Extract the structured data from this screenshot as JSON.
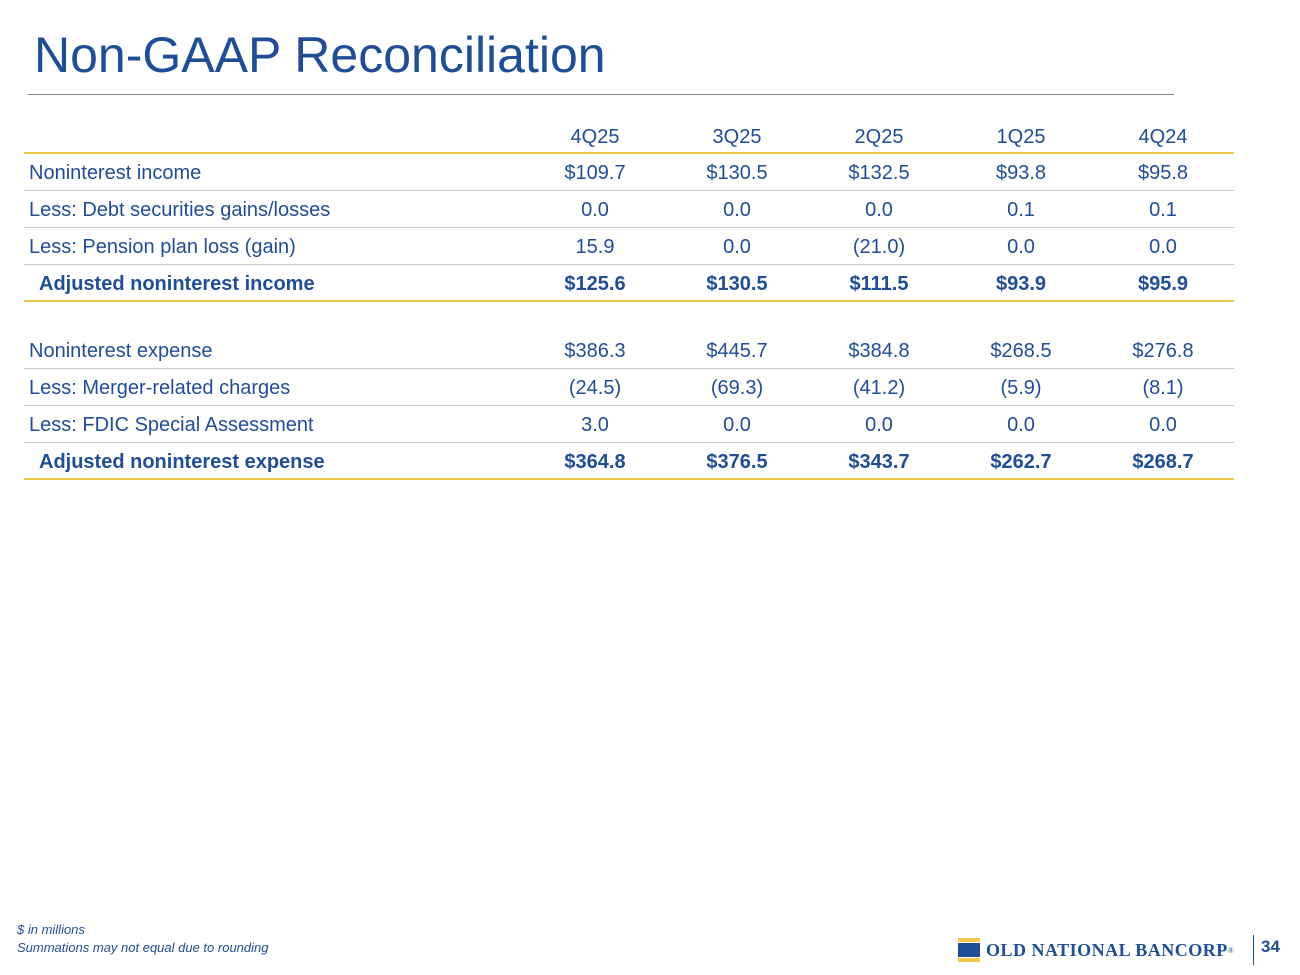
{
  "title": "Non-GAAP Reconciliation",
  "columns": [
    "4Q25",
    "3Q25",
    "2Q25",
    "1Q25",
    "4Q24"
  ],
  "income_section": [
    {
      "label": "Noninterest income",
      "values": [
        "$109.7",
        "$130.5",
        "$132.5",
        "$93.8",
        "$95.8"
      ]
    },
    {
      "label": "Less: Debt securities gains/losses",
      "values": [
        "0.0",
        "0.0",
        "0.0",
        "0.1",
        "0.1"
      ]
    },
    {
      "label": "Less: Pension plan loss (gain)",
      "values": [
        "15.9",
        "0.0",
        "(21.0)",
        "0.0",
        "0.0"
      ]
    },
    {
      "label": "Adjusted noninterest income",
      "values": [
        "$125.6",
        "$130.5",
        "$111.5",
        "$93.9",
        "$95.9"
      ]
    }
  ],
  "expense_section": [
    {
      "label": "Noninterest expense",
      "values": [
        "$386.3",
        "$445.7",
        "$384.8",
        "$268.5",
        "$276.8"
      ]
    },
    {
      "label": "Less: Merger-related charges",
      "values": [
        "(24.5)",
        "(69.3)",
        "(41.2)",
        "(5.9)",
        "(8.1)"
      ]
    },
    {
      "label": "Less: FDIC Special Assessment",
      "values": [
        "3.0",
        "0.0",
        "0.0",
        "0.0",
        "0.0"
      ]
    },
    {
      "label": "Adjusted noninterest expense",
      "values": [
        "$364.8",
        "$376.5",
        "$343.7",
        "$262.7",
        "$268.7"
      ]
    }
  ],
  "footnotes": [
    "$ in millions",
    "Summations may not equal due to rounding"
  ],
  "logo": {
    "text": "OLD NATIONAL BANCORP",
    "registered": "®"
  },
  "page_number": "34",
  "colors": {
    "brand_blue": "#1f4e96",
    "accent_gold": "#f2c94c"
  }
}
